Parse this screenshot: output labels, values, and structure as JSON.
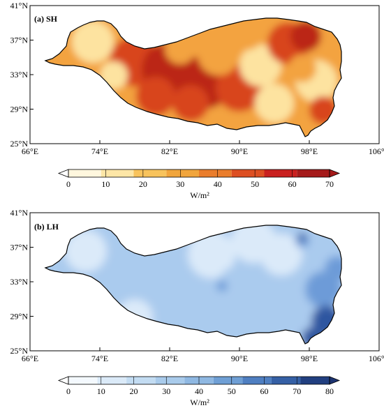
{
  "panels": [
    {
      "title": "(a) SH",
      "x_ticks": [
        "66°E",
        "74°E",
        "82°E",
        "90°E",
        "98°E",
        "106°E"
      ],
      "y_ticks": [
        "41°N",
        "37°N",
        "33°N",
        "29°N",
        "25°N"
      ],
      "colorbar": {
        "labels": [
          "0",
          "10",
          "20",
          "30",
          "40",
          "50",
          "60",
          "70"
        ],
        "unit": "W/m²",
        "colors": [
          "#fff7de",
          "#fde6a6",
          "#f8c35c",
          "#f1a53c",
          "#ea7d2c",
          "#dd4f22",
          "#c9201f",
          "#a51a1a"
        ],
        "under_color": "#ffffff",
        "over_color": "#a51a1a"
      },
      "field_colors": {
        "base": "#f3a33f",
        "low": "#fde3a0",
        "high": "#d8441f",
        "max": "#bb2619"
      }
    },
    {
      "title": "(b) LH",
      "x_ticks": [
        "66°E",
        "74°E",
        "82°E",
        "90°E",
        "98°E",
        "106°E"
      ],
      "y_ticks": [
        "41°N",
        "37°N",
        "33°N",
        "29°N",
        "25°N"
      ],
      "colorbar": {
        "labels": [
          "0",
          "10",
          "20",
          "30",
          "40",
          "50",
          "60",
          "70",
          "80"
        ],
        "unit": "W/m²",
        "colors": [
          "#f4f9fe",
          "#dbeaf8",
          "#c3dcf2",
          "#a9cbeb",
          "#8fb8e2",
          "#6f9fd5",
          "#4f7fc1",
          "#3560a5",
          "#213f80"
        ],
        "under_color": "#ffffff",
        "over_color": "#1c3370"
      },
      "field_colors": {
        "base": "#aacbee",
        "low": "#dbeaf9",
        "high": "#6d9bd8",
        "max": "#2f57a0"
      }
    }
  ]
}
